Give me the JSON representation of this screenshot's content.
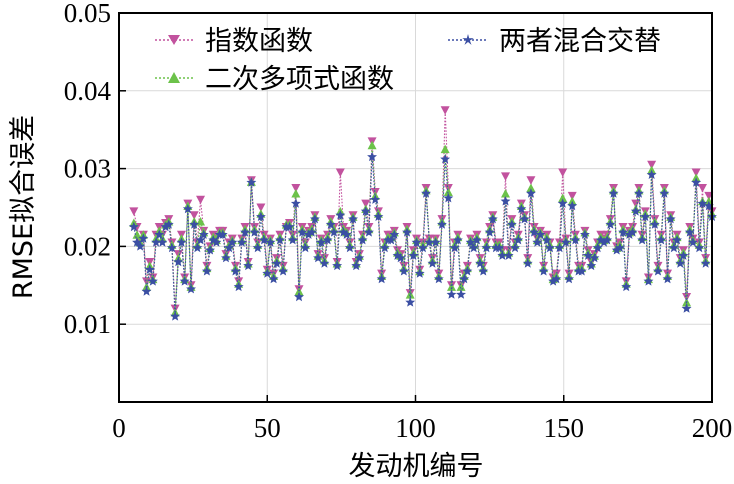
{
  "chart_data": {
    "type": "line",
    "xlabel": "发动机编号",
    "ylabel": "RMSE拟合误差",
    "xlim": [
      0,
      200
    ],
    "ylim": [
      0,
      0.05
    ],
    "xticks": [
      "0",
      "50",
      "100",
      "150",
      "200"
    ],
    "yticks": [
      "0.01",
      "0.02",
      "0.03",
      "0.04",
      "0.05"
    ],
    "grid": true,
    "legend_position": "top",
    "series": [
      {
        "name": "指数函数",
        "color": "#c2529e",
        "marker": "triangle-down",
        "values": [
          0.0245,
          0.0225,
          0.0205,
          0.0215,
          0.0155,
          0.018,
          0.016,
          0.0215,
          0.0225,
          0.0215,
          0.023,
          0.0235,
          0.0205,
          0.012,
          0.019,
          0.0215,
          0.016,
          0.0255,
          0.015,
          0.024,
          0.0205,
          0.026,
          0.022,
          0.0175,
          0.02,
          0.0215,
          0.021,
          0.022,
          0.022,
          0.019,
          0.0205,
          0.021,
          0.0175,
          0.0155,
          0.021,
          0.0225,
          0.018,
          0.0285,
          0.0225,
          0.0205,
          0.025,
          0.0215,
          0.017,
          0.021,
          0.0165,
          0.0185,
          0.0215,
          0.0175,
          0.0225,
          0.023,
          0.0215,
          0.0275,
          0.0145,
          0.0225,
          0.0205,
          0.022,
          0.0225,
          0.024,
          0.019,
          0.021,
          0.0185,
          0.0215,
          0.0235,
          0.0225,
          0.018,
          0.0295,
          0.0225,
          0.022,
          0.0205,
          0.024,
          0.018,
          0.019,
          0.0215,
          0.0255,
          0.0225,
          0.0335,
          0.027,
          0.0245,
          0.0165,
          0.0205,
          0.0215,
          0.0215,
          0.022,
          0.0195,
          0.019,
          0.0175,
          0.0225,
          0.014,
          0.0195,
          0.021,
          0.017,
          0.0205,
          0.0275,
          0.021,
          0.0185,
          0.021,
          0.0165,
          0.0235,
          0.0375,
          0.0275,
          0.015,
          0.0205,
          0.0215,
          0.015,
          0.0165,
          0.0175,
          0.021,
          0.0205,
          0.0215,
          0.0185,
          0.0175,
          0.0205,
          0.0225,
          0.024,
          0.0205,
          0.0205,
          0.0195,
          0.029,
          0.0195,
          0.0235,
          0.0205,
          0.0215,
          0.0255,
          0.024,
          0.0185,
          0.0285,
          0.0225,
          0.021,
          0.022,
          0.0175,
          0.0215,
          0.0205,
          0.016,
          0.0165,
          0.0205,
          0.0295,
          0.021,
          0.0165,
          0.0265,
          0.0215,
          0.0175,
          0.0175,
          0.022,
          0.0195,
          0.018,
          0.019,
          0.0205,
          0.0215,
          0.021,
          0.0215,
          0.0235,
          0.0275,
          0.02,
          0.0205,
          0.0225,
          0.0155,
          0.022,
          0.0225,
          0.0255,
          0.0275,
          0.0215,
          0.0245,
          0.016,
          0.0305,
          0.0235,
          0.0175,
          0.0215,
          0.0275,
          0.0165,
          0.024,
          0.0205,
          0.0215,
          0.0185,
          0.0195,
          0.0135,
          0.0225,
          0.021,
          0.0295,
          0.0205,
          0.0275,
          0.0185,
          0.0265,
          0.0245
        ]
      },
      {
        "name": "二次多项式函数",
        "color": "#6cc24a",
        "marker": "triangle-up",
        "values": [
          0.023,
          0.0215,
          0.0205,
          0.0215,
          0.0148,
          0.0175,
          0.0158,
          0.021,
          0.022,
          0.021,
          0.0228,
          0.0232,
          0.0202,
          0.0115,
          0.0185,
          0.021,
          0.0158,
          0.0252,
          0.0148,
          0.0232,
          0.0202,
          0.0232,
          0.0218,
          0.0172,
          0.0198,
          0.0212,
          0.0208,
          0.0218,
          0.0218,
          0.0188,
          0.0202,
          0.0208,
          0.0172,
          0.0152,
          0.0208,
          0.0222,
          0.0178,
          0.0283,
          0.0222,
          0.0202,
          0.0242,
          0.0212,
          0.0168,
          0.0208,
          0.0162,
          0.0182,
          0.0212,
          0.0172,
          0.0228,
          0.0228,
          0.0212,
          0.0268,
          0.0142,
          0.0222,
          0.0202,
          0.0218,
          0.0222,
          0.0238,
          0.0188,
          0.0208,
          0.0182,
          0.0212,
          0.0232,
          0.0222,
          0.0178,
          0.0245,
          0.0222,
          0.0218,
          0.0202,
          0.0238,
          0.0178,
          0.0188,
          0.0212,
          0.0248,
          0.0222,
          0.033,
          0.0265,
          0.0242,
          0.0162,
          0.0202,
          0.0212,
          0.0212,
          0.0218,
          0.0192,
          0.0188,
          0.0172,
          0.0222,
          0.0138,
          0.0192,
          0.0208,
          0.0168,
          0.0202,
          0.0272,
          0.0208,
          0.0182,
          0.0208,
          0.0162,
          0.0232,
          0.0325,
          0.027,
          0.0148,
          0.0202,
          0.0212,
          0.0148,
          0.0162,
          0.0172,
          0.0208,
          0.0202,
          0.0212,
          0.0182,
          0.0172,
          0.0202,
          0.0222,
          0.0238,
          0.0202,
          0.0202,
          0.0192,
          0.0268,
          0.0192,
          0.0232,
          0.0202,
          0.0212,
          0.0252,
          0.0238,
          0.0182,
          0.0275,
          0.0222,
          0.0208,
          0.0218,
          0.0172,
          0.0212,
          0.0202,
          0.0158,
          0.0162,
          0.0202,
          0.0262,
          0.0208,
          0.0162,
          0.0258,
          0.0212,
          0.0172,
          0.0172,
          0.0218,
          0.0192,
          0.0178,
          0.0188,
          0.0202,
          0.0212,
          0.0208,
          0.0212,
          0.0232,
          0.0272,
          0.0198,
          0.0202,
          0.0222,
          0.0152,
          0.0218,
          0.0222,
          0.0248,
          0.0272,
          0.0212,
          0.0242,
          0.0158,
          0.0298,
          0.0232,
          0.0172,
          0.0212,
          0.0272,
          0.0162,
          0.0238,
          0.0202,
          0.0212,
          0.0182,
          0.0192,
          0.0128,
          0.0222,
          0.0208,
          0.0288,
          0.0202,
          0.0258,
          0.0182,
          0.0258,
          0.0242
        ]
      },
      {
        "name": "两者混合交替",
        "color": "#3b4fa3",
        "marker": "star",
        "values": [
          0.0225,
          0.0205,
          0.02,
          0.021,
          0.0142,
          0.017,
          0.0155,
          0.0205,
          0.0215,
          0.0205,
          0.0225,
          0.0228,
          0.0198,
          0.011,
          0.018,
          0.0205,
          0.0155,
          0.0248,
          0.0145,
          0.0228,
          0.0198,
          0.0208,
          0.0215,
          0.0168,
          0.0195,
          0.0208,
          0.0205,
          0.0215,
          0.0215,
          0.0185,
          0.0198,
          0.0205,
          0.0168,
          0.0148,
          0.0205,
          0.0218,
          0.0175,
          0.0282,
          0.0218,
          0.0198,
          0.0238,
          0.0208,
          0.0165,
          0.0205,
          0.0158,
          0.0178,
          0.0208,
          0.0168,
          0.0225,
          0.0225,
          0.0208,
          0.0255,
          0.0135,
          0.0218,
          0.0198,
          0.0215,
          0.0218,
          0.0235,
          0.0185,
          0.0205,
          0.0178,
          0.0208,
          0.0228,
          0.0218,
          0.0175,
          0.024,
          0.0218,
          0.0215,
          0.0198,
          0.0235,
          0.0175,
          0.0185,
          0.0208,
          0.0245,
          0.0218,
          0.0315,
          0.026,
          0.0238,
          0.0158,
          0.0198,
          0.0208,
          0.0208,
          0.0215,
          0.0188,
          0.0185,
          0.0168,
          0.0218,
          0.0128,
          0.0188,
          0.0205,
          0.0165,
          0.0198,
          0.0268,
          0.0205,
          0.0178,
          0.0205,
          0.0158,
          0.0228,
          0.0312,
          0.0262,
          0.0138,
          0.0198,
          0.0208,
          0.0138,
          0.0158,
          0.0168,
          0.0205,
          0.0198,
          0.0208,
          0.0178,
          0.0168,
          0.0198,
          0.0218,
          0.0235,
          0.0198,
          0.0198,
          0.0188,
          0.0258,
          0.0188,
          0.0228,
          0.0198,
          0.0208,
          0.0248,
          0.0235,
          0.0178,
          0.0268,
          0.0218,
          0.0205,
          0.0215,
          0.0168,
          0.0208,
          0.0198,
          0.0155,
          0.0158,
          0.0198,
          0.0255,
          0.0205,
          0.0158,
          0.0252,
          0.0208,
          0.0168,
          0.0168,
          0.0215,
          0.0188,
          0.0175,
          0.0185,
          0.0198,
          0.0208,
          0.0205,
          0.0208,
          0.0228,
          0.0268,
          0.0195,
          0.0198,
          0.0218,
          0.0148,
          0.0215,
          0.0218,
          0.0245,
          0.0268,
          0.0208,
          0.0238,
          0.0155,
          0.0292,
          0.0228,
          0.0168,
          0.0208,
          0.0268,
          0.0158,
          0.0235,
          0.0198,
          0.0208,
          0.0178,
          0.0188,
          0.012,
          0.0218,
          0.0205,
          0.0282,
          0.0198,
          0.0255,
          0.0178,
          0.0252,
          0.0238
        ]
      }
    ]
  }
}
